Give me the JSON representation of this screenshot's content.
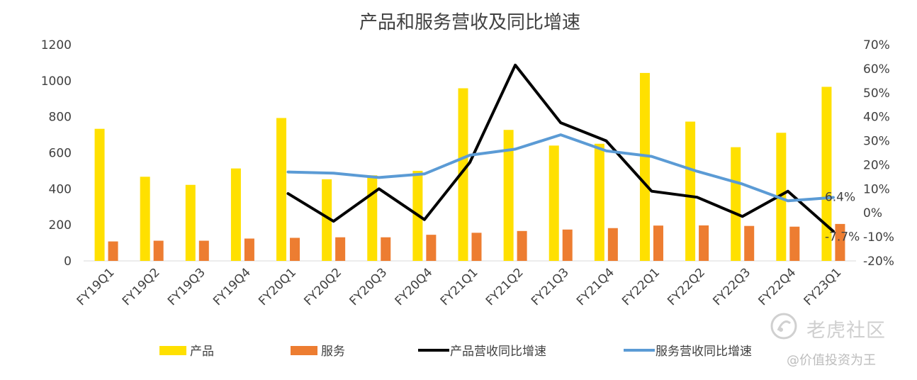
{
  "chart_data": {
    "type": "bar",
    "title": "产品和服务营收及同比增速",
    "categories": [
      "FY19Q1",
      "FY19Q2",
      "FY19Q3",
      "FY19Q4",
      "FY20Q1",
      "FY20Q2",
      "FY20Q3",
      "FY20Q4",
      "FY21Q1",
      "FY21Q2",
      "FY21Q3",
      "FY21Q4",
      "FY22Q1",
      "FY22Q2",
      "FY22Q3",
      "FY22Q4",
      "FY23Q1"
    ],
    "left_axis": {
      "ylim": [
        0,
        1200
      ],
      "ticks": [
        "0",
        "200",
        "400",
        "600",
        "800",
        "1000",
        "1200"
      ]
    },
    "right_axis": {
      "ylim": [
        -20,
        70
      ],
      "ticks": [
        "-20%",
        "-10%",
        "0%",
        "10%",
        "20%",
        "30%",
        "40%",
        "50%",
        "60%",
        "70%"
      ]
    },
    "series": [
      {
        "name": "产品",
        "kind": "bar",
        "axis": "left",
        "color": "#FFE000",
        "values": [
          733,
          467,
          422,
          513,
          793,
          453,
          475,
          500,
          958,
          727,
          640,
          650,
          1043,
          773,
          631,
          711,
          966
        ]
      },
      {
        "name": "服务",
        "kind": "bar",
        "axis": "left",
        "color": "#ED7D31",
        "values": [
          108,
          112,
          112,
          124,
          128,
          131,
          131,
          145,
          156,
          166,
          174,
          182,
          196,
          197,
          194,
          190,
          205
        ]
      },
      {
        "name": "产品营收同比增速",
        "kind": "line",
        "axis": "right",
        "color": "#000000",
        "values": [
          null,
          null,
          null,
          null,
          8.0,
          -3.5,
          10.0,
          -2.8,
          21.0,
          61.5,
          37.5,
          30.0,
          9.0,
          6.5,
          -1.5,
          9.0,
          -7.7
        ]
      },
      {
        "name": "服务营收同比增速",
        "kind": "line",
        "axis": "right",
        "color": "#5B9BD5",
        "values": [
          null,
          null,
          null,
          null,
          17.0,
          16.5,
          14.7,
          16.2,
          24.0,
          26.5,
          32.5,
          25.8,
          23.5,
          17.3,
          12.0,
          5.0,
          6.4
        ]
      }
    ],
    "data_labels": [
      {
        "series": "服务营收同比增速",
        "category": "FY23Q1",
        "text": "6.4%"
      },
      {
        "series": "产品营收同比增速",
        "category": "FY23Q1",
        "text": "-7.7%"
      }
    ],
    "legend": {
      "position": "bottom"
    },
    "grid": false
  },
  "watermark": {
    "brand": "老虎社区",
    "handle": "@价值投资为王"
  }
}
